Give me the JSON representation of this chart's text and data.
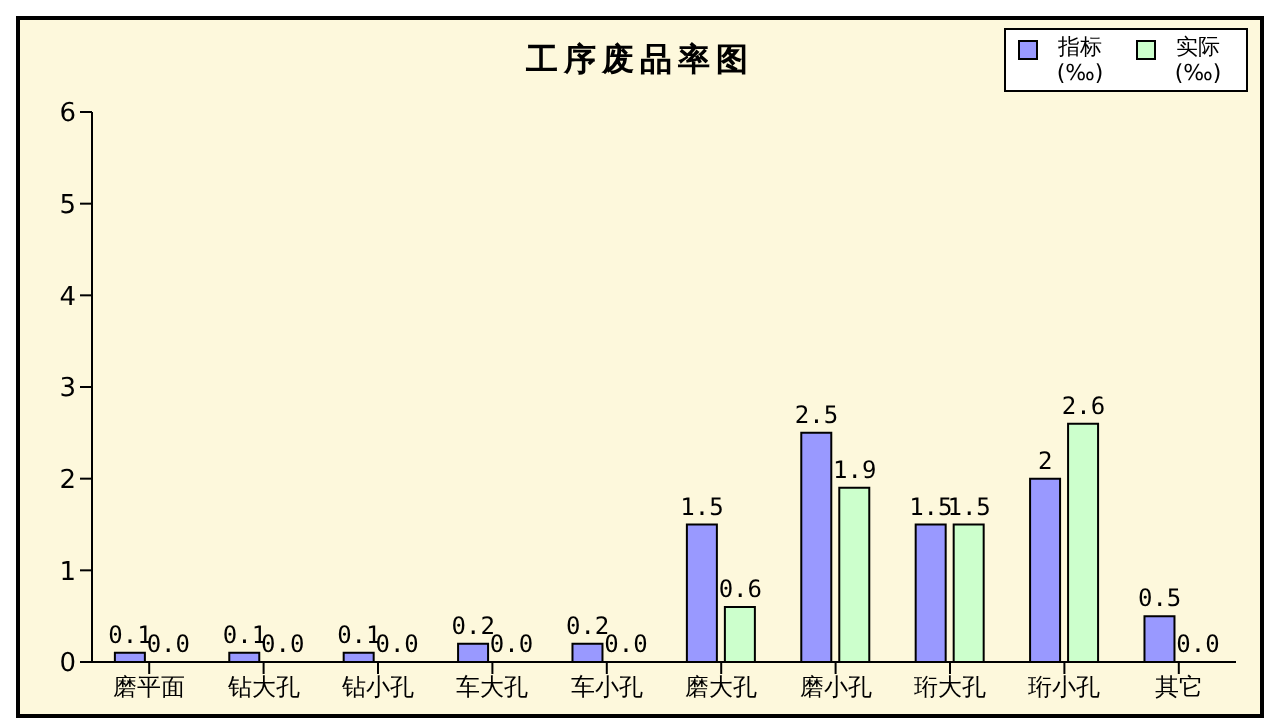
{
  "chart_data": {
    "type": "bar",
    "title": "工序废品率图",
    "categories": [
      "磨平面",
      "钻大孔",
      "钻小孔",
      "车大孔",
      "车小孔",
      "磨大孔",
      "磨小孔",
      "珩大孔",
      "珩小孔",
      "其它"
    ],
    "series": [
      {
        "name": "指标 (‰)",
        "color": "#9999ff",
        "values": [
          0.1,
          0.1,
          0.1,
          0.2,
          0.2,
          1.5,
          2.5,
          1.5,
          2,
          0.5
        ],
        "value_labels": [
          "0.1",
          "0.1",
          "0.1",
          "0.2",
          "0.2",
          "1.5",
          "2.5",
          "1.5",
          "2",
          "0.5"
        ]
      },
      {
        "name": "实际 (‰)",
        "color": "#ccffcc",
        "values": [
          0,
          0,
          0,
          0,
          0,
          0.6,
          1.9,
          1.5,
          2.6,
          0
        ],
        "value_labels": [
          "0.0",
          "0.0",
          "0.0",
          "0.0",
          "0.0",
          "0.6",
          "1.9",
          "1.5",
          "2.6",
          "0.0"
        ]
      }
    ],
    "ylim": [
      0,
      6
    ],
    "yticks": [
      0,
      1,
      2,
      3,
      4,
      5,
      6
    ],
    "grid": false,
    "legend": "top right"
  }
}
